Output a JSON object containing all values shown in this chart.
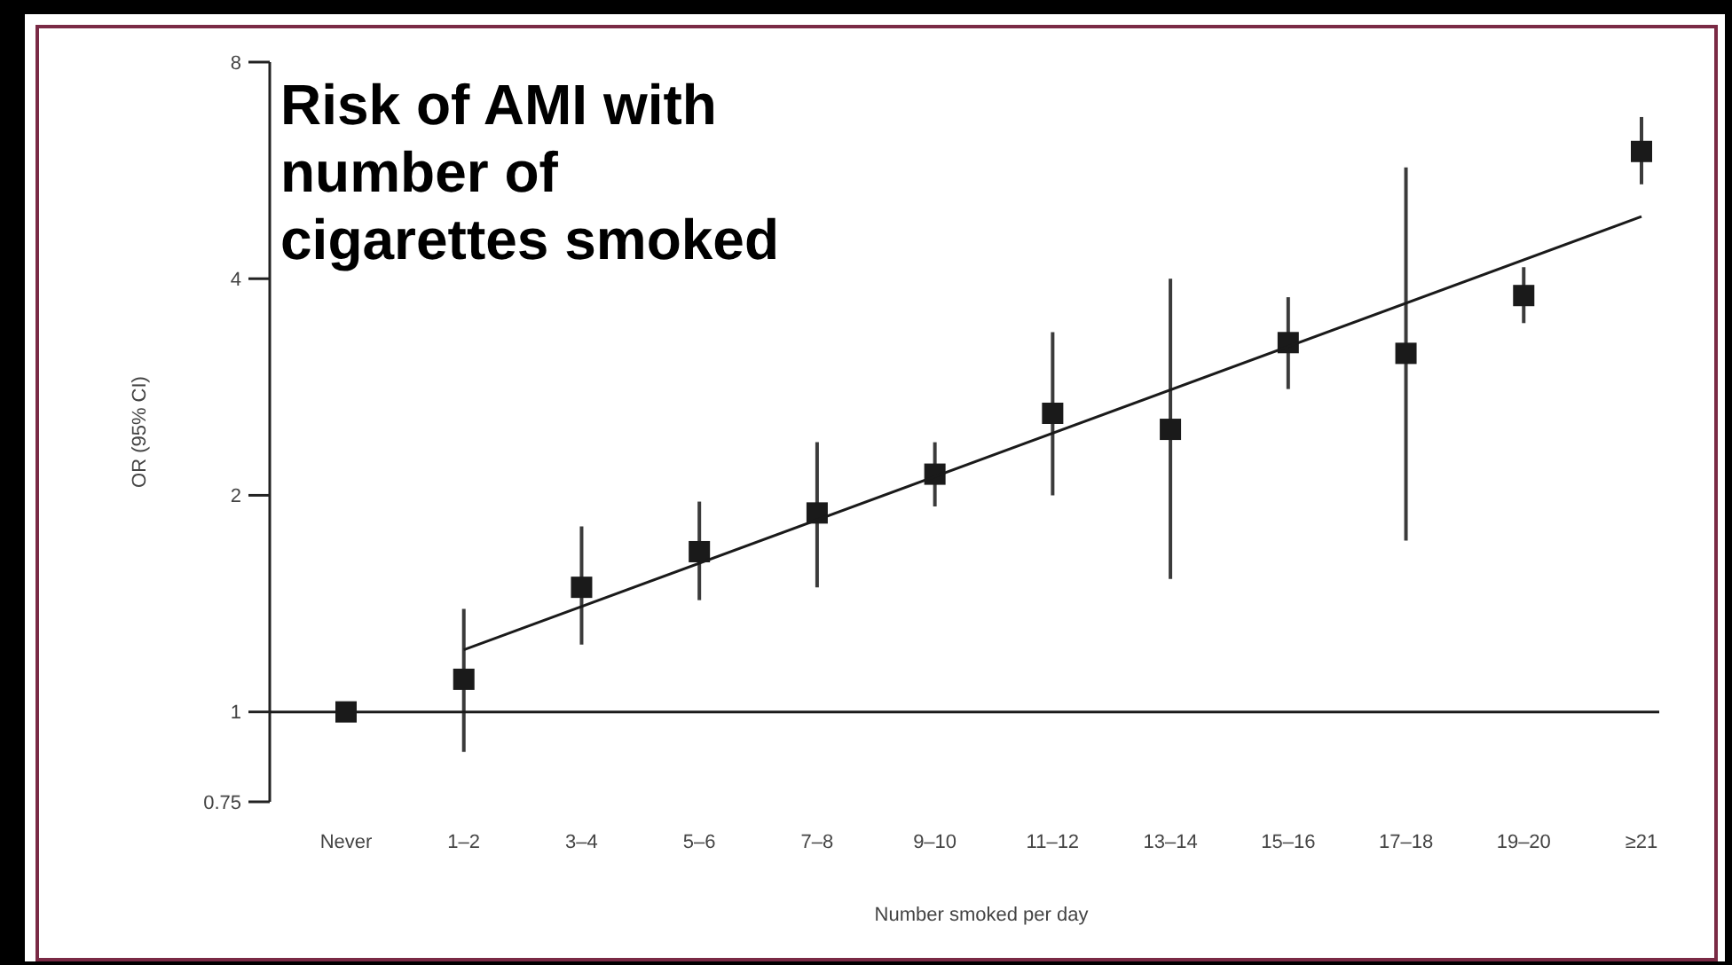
{
  "chart_data": {
    "type": "scatter",
    "title": "Risk of AMI with number of cigarettes smoked",
    "xlabel": "Number smoked per day",
    "ylabel": "OR (95% CI)",
    "categories": [
      "Never",
      "1–2",
      "3–4",
      "5–6",
      "7–8",
      "9–10",
      "11–12",
      "13–14",
      "15–16",
      "17–18",
      "19–20",
      "≥21"
    ],
    "log": "y",
    "ylim": [
      0.75,
      8
    ],
    "yticks": [
      0.75,
      1,
      2,
      4,
      8
    ],
    "grid": false,
    "series": [
      {
        "color": "#1a1a1a",
        "marker": "square",
        "values": [
          1.0,
          1.11,
          1.49,
          1.67,
          1.89,
          2.14,
          2.6,
          2.47,
          3.26,
          3.15,
          3.79,
          6.01
        ],
        "errors": [
          null,
          [
            0.88,
            1.39
          ],
          [
            1.24,
            1.81
          ],
          [
            1.43,
            1.96
          ],
          [
            1.49,
            2.37
          ],
          [
            1.93,
            2.37
          ],
          [
            2.0,
            3.37
          ],
          [
            1.53,
            4.0
          ],
          [
            2.81,
            3.77
          ],
          [
            1.73,
            5.71
          ],
          [
            3.47,
            4.15
          ],
          [
            5.41,
            6.71
          ]
        ]
      },
      {
        "type": "line",
        "color": "#1a1a1a",
        "x": [
          "1–2",
          "≥21"
        ],
        "values": [
          1.22,
          4.88
        ]
      }
    ],
    "ref_lines": [
      {
        "axis": "y",
        "value": 1,
        "color": "#1a1a1a"
      }
    ]
  }
}
